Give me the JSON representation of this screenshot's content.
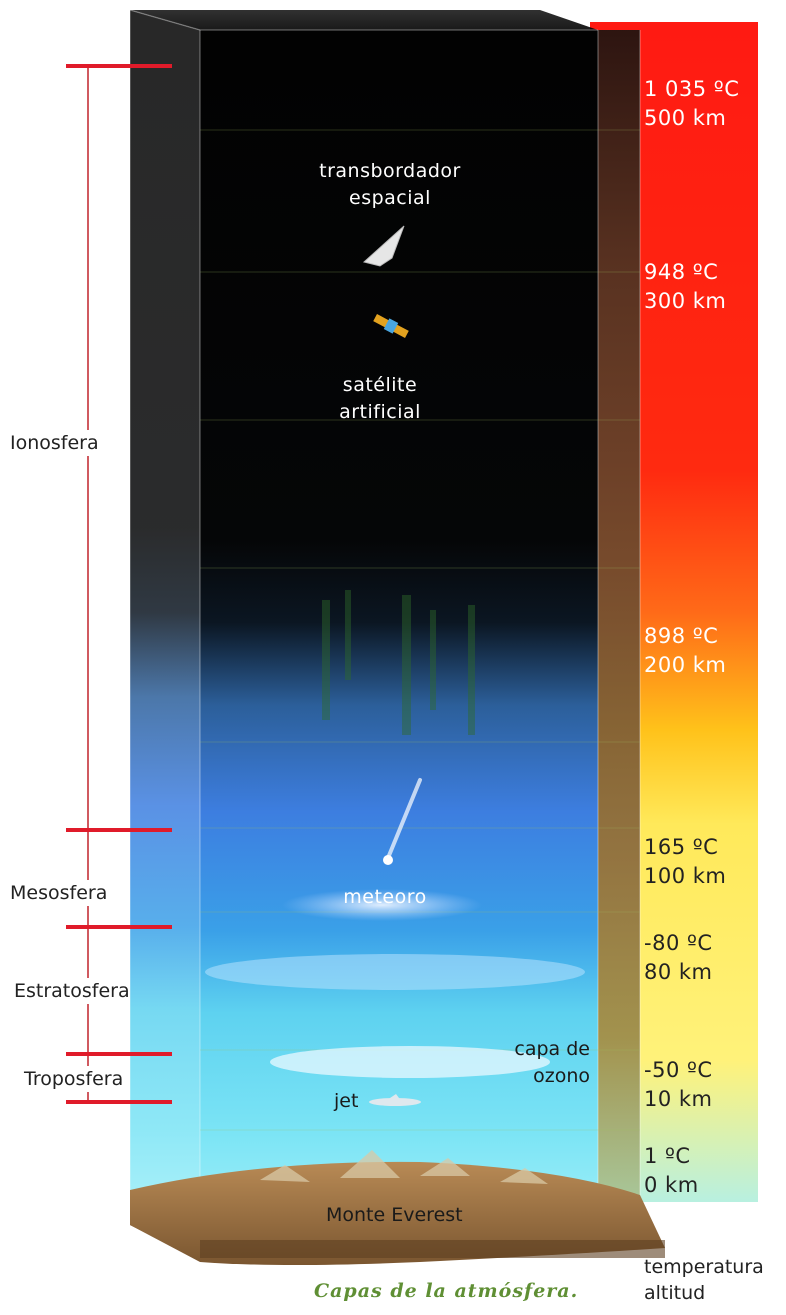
{
  "layers": [
    {
      "name": "Ionosfera"
    },
    {
      "name": "Mesosfera"
    },
    {
      "name": "Estratosfera"
    },
    {
      "name": "Troposfera"
    }
  ],
  "objects": {
    "shuttle": "transbordador\nespacial",
    "satellite": "satélite\nartificial",
    "meteor": "meteoro",
    "jet": "jet",
    "ozone": "capa de\nozono",
    "everest": "Monte Everest"
  },
  "scale": [
    {
      "temp": "1 035 ºC",
      "alt": "500 km"
    },
    {
      "temp": "948 ºC",
      "alt": "300 km"
    },
    {
      "temp": "898 ºC",
      "alt": "200 km"
    },
    {
      "temp": "165 ºC",
      "alt": "100 km"
    },
    {
      "temp": "-80 ºC",
      "alt": "80 km"
    },
    {
      "temp": "-50 ºC",
      "alt": "10 km"
    },
    {
      "temp": "1 ºC",
      "alt": "0 km"
    }
  ],
  "legend": {
    "temperature": "temperatura",
    "altitude": "altitud"
  },
  "caption": "Capas de la atmósfera.",
  "colors": {
    "divider": "#e01b2a",
    "hot": "#ff1a1a",
    "cool": "#fff27a",
    "caption": "#5f8f34"
  }
}
